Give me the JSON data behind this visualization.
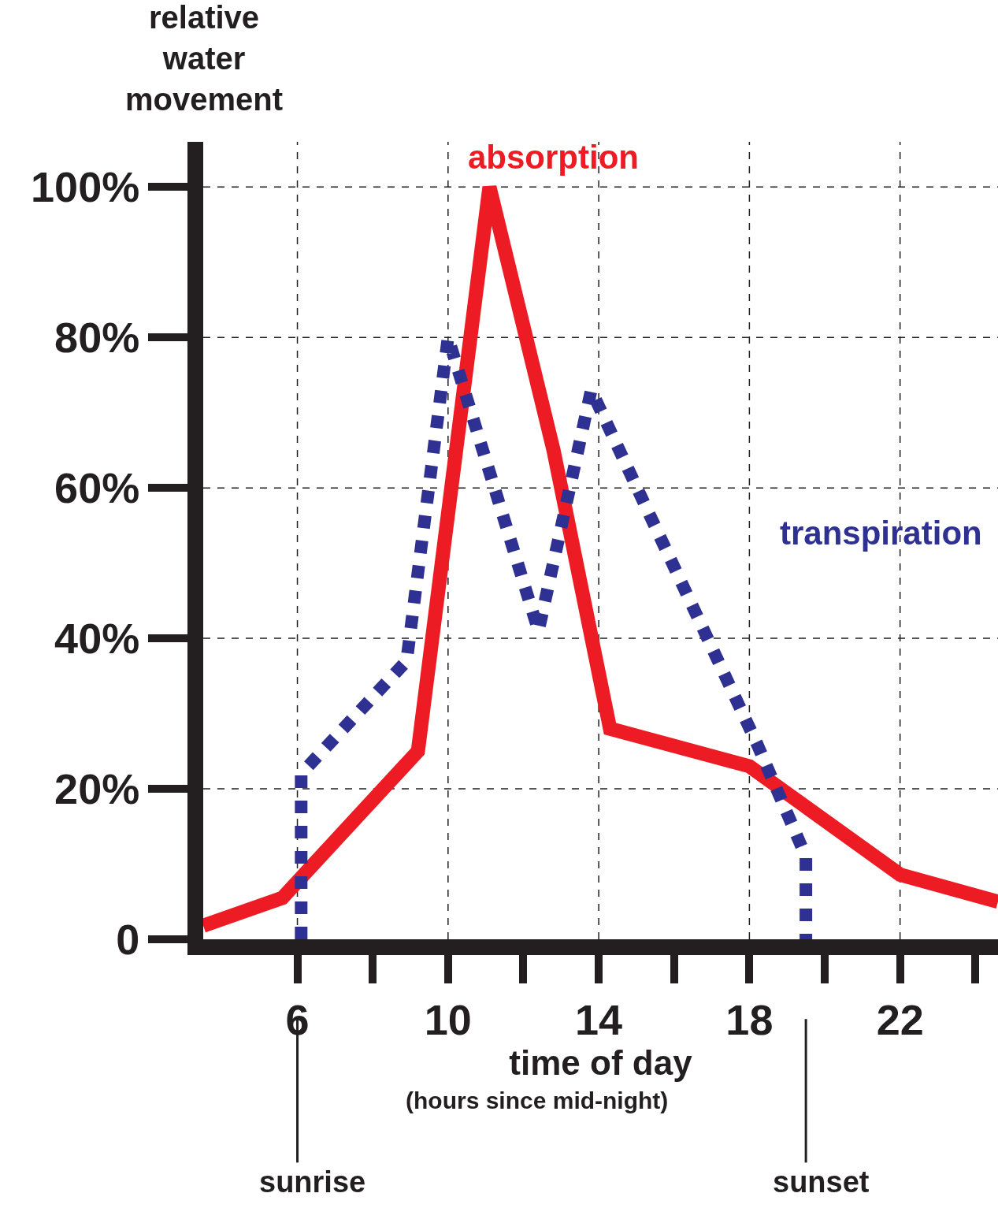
{
  "chart_data": {
    "type": "line",
    "ylabel": "relative water movement",
    "xlabel": "time of day",
    "annotations": [
      "(hours since mid-night)",
      "sunrise",
      "sunset"
    ],
    "xlim": [
      3.5,
      24.6
    ],
    "ylim": [
      0,
      106
    ],
    "xticks": [
      6,
      10,
      14,
      18,
      22
    ],
    "yticks": [
      0,
      {
        "value": 20,
        "label": "20%"
      },
      {
        "value": 40,
        "label": "40%"
      },
      {
        "value": 60,
        "label": "60%"
      },
      {
        "value": 80,
        "label": "80%"
      },
      {
        "value": 100,
        "label": "100%"
      }
    ],
    "grid": true,
    "legend": false,
    "series": [
      {
        "name": "absorption",
        "color": "#ed1c24",
        "line_style": "solid",
        "x": [
          3.5,
          5.6,
          9.2,
          11.1,
          12.8,
          14.3,
          18,
          22,
          24.6
        ],
        "values": [
          1.8,
          5.5,
          25,
          100,
          65,
          28,
          23,
          8.6,
          5
        ]
      },
      {
        "name": "transpiration",
        "color": "#2e3192",
        "line_style": "dotted",
        "x": [
          6.1,
          6.1,
          8.9,
          10,
          12.4,
          13.8,
          18.2,
          19.5,
          19.5
        ],
        "values": [
          0,
          22,
          37,
          80,
          41,
          73,
          26,
          11,
          0
        ]
      }
    ]
  }
}
